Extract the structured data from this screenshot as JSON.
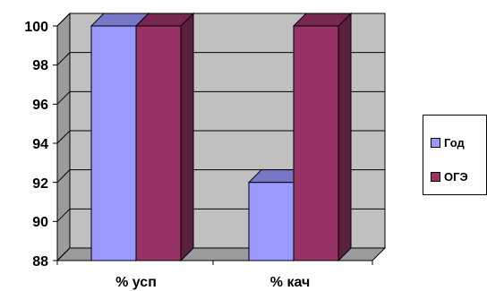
{
  "chart_data": {
    "type": "bar",
    "categories": [
      "% усп",
      "% кач"
    ],
    "series": [
      {
        "name": "Год",
        "values": [
          100,
          92
        ],
        "color": "#9999FF"
      },
      {
        "name": "ОГЭ",
        "values": [
          100,
          100
        ],
        "color": "#993366"
      }
    ],
    "yticks": [
      "88",
      "90",
      "92",
      "94",
      "96",
      "98",
      "100"
    ],
    "ylim": [
      88,
      100
    ],
    "grid": true,
    "legend_position": "right",
    "three_d": true
  }
}
